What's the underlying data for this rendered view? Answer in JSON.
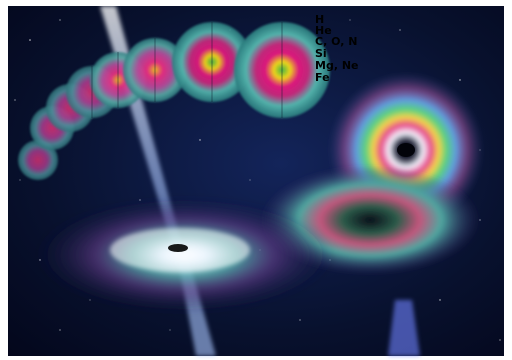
{
  "layers": [
    {
      "label": "H",
      "color": "#2f8a8a"
    },
    {
      "label": "He",
      "color": "#4fb9b0"
    },
    {
      "label": "C, O, N",
      "color": "#e0187e"
    },
    {
      "label": "Si",
      "color": "#c22a7c"
    },
    {
      "label": "Mg, Ne",
      "color": "#f3d21a"
    },
    {
      "label": "Fe",
      "color": "#43b843"
    }
  ],
  "colors": {
    "space": "#050a1c",
    "nebula": "#0f1d4a",
    "jet": "#e3ecff",
    "border": "#ffffff"
  }
}
